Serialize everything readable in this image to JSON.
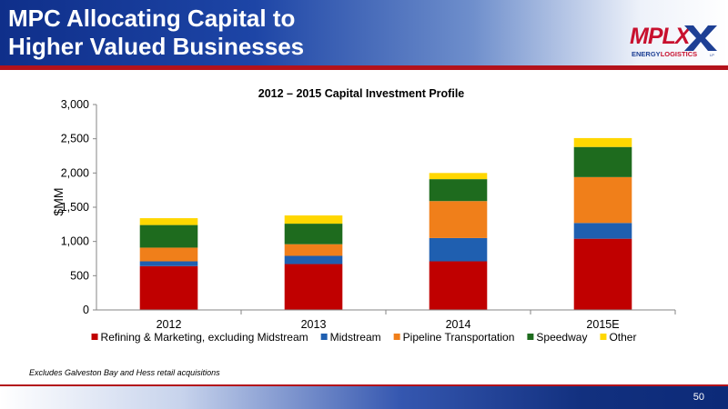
{
  "slide": {
    "title_line1": "MPC Allocating Capital to",
    "title_line2": "Higher Valued Businesses",
    "footnote": "Excludes Galveston Bay and Hess retail acquisitions",
    "page_number": "50"
  },
  "logo": {
    "brand": "MPLX",
    "tagline": "ENERGYLOGISTICS",
    "tagline_part1": "ENERGY",
    "tagline_part2": "LOGISTICS",
    "mark": "LP"
  },
  "colors": {
    "header_blue": "#0f2f8a",
    "accent_red": "#b3121b"
  },
  "chart_data": {
    "type": "bar",
    "stacked": true,
    "title": "2012 – 2015 Capital Investment Profile",
    "xlabel": "",
    "ylabel": "$MM",
    "ylim": [
      0,
      3000
    ],
    "yticks": [
      0,
      500,
      1000,
      1500,
      2000,
      2500,
      3000
    ],
    "ytick_labels": [
      "0",
      "500",
      "1,000",
      "1,500",
      "2,000",
      "2,500",
      "3,000"
    ],
    "categories": [
      "2012",
      "2013",
      "2014",
      "2015E"
    ],
    "legend_position": "bottom",
    "series": [
      {
        "name": "Refining & Marketing, excluding Midstream",
        "color": "#c00000",
        "values": [
          640,
          670,
          710,
          1040
        ]
      },
      {
        "name": "Midstream",
        "color": "#1f5fb0",
        "values": [
          70,
          120,
          340,
          230
        ]
      },
      {
        "name": "Pipeline Transportation",
        "color": "#f07f1a",
        "values": [
          200,
          170,
          540,
          670
        ]
      },
      {
        "name": "Speedway",
        "color": "#1e6b1e",
        "values": [
          330,
          300,
          320,
          440
        ]
      },
      {
        "name": "Other",
        "color": "#ffd700",
        "values": [
          100,
          120,
          90,
          130
        ]
      }
    ]
  }
}
